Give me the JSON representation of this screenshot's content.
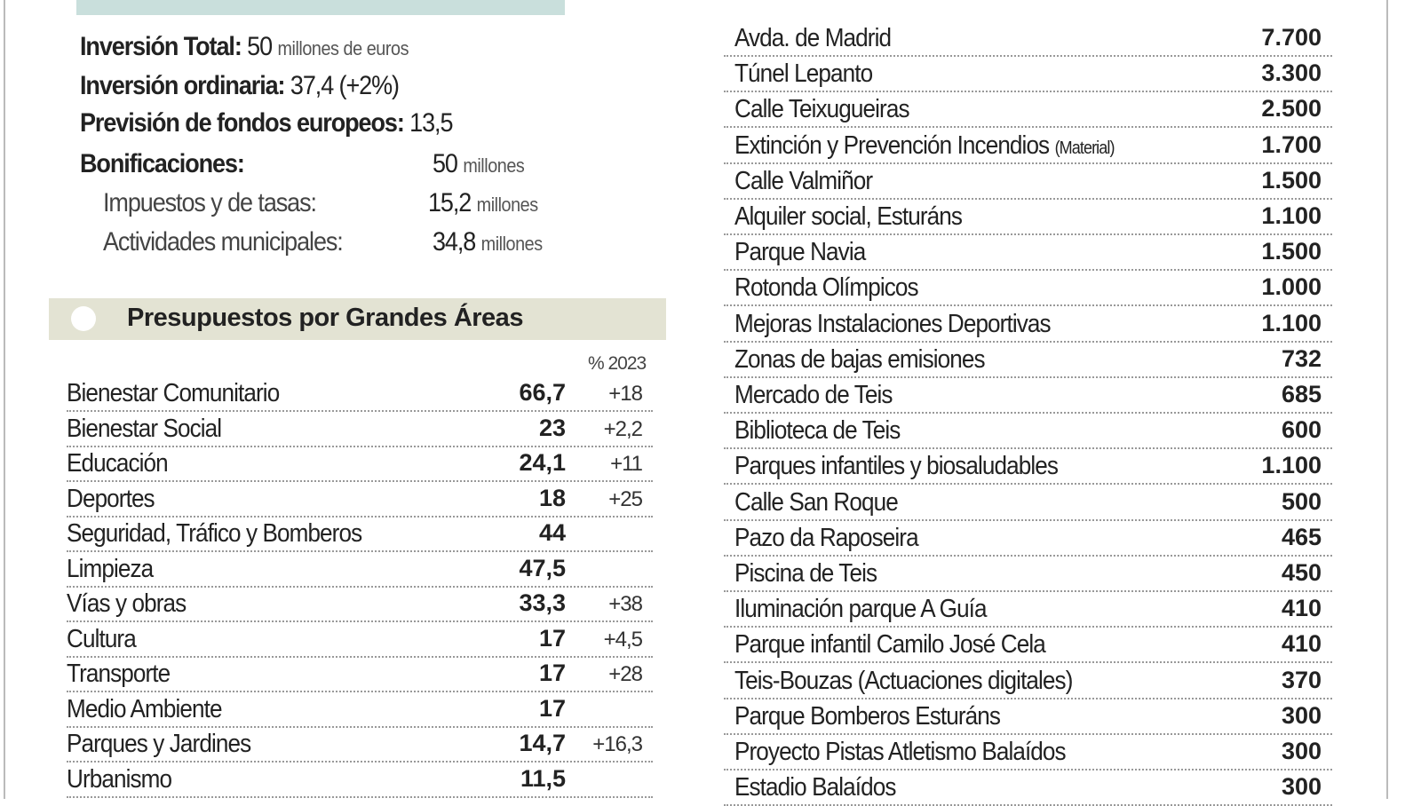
{
  "summary": {
    "total_label": "Inversión Total:",
    "total_value": "50",
    "total_unit": "millones de  euros",
    "ordinaria_label": "Inversión ordinaria:",
    "ordinaria_value": "37,4",
    "ordinaria_change": "(+2%)",
    "fondos_label": "Previsión de fondos europeos:",
    "fondos_value": "13,5",
    "bonif_label": "Bonificaciones:",
    "bonif_value": "50",
    "bonif_unit": "millones",
    "impuestos_label": "Impuestos y de tasas:",
    "impuestos_value": "15,2",
    "impuestos_unit": "millones",
    "actividades_label": "Actividades municipales:",
    "actividades_value": "34,8",
    "actividades_unit": "millones"
  },
  "areas": {
    "title": "Presupuestos por Grandes Áreas",
    "pct_header": "% 2023",
    "rows": [
      {
        "name": "Bienestar Comunitario",
        "value": "66,7",
        "pct": "+18"
      },
      {
        "name": "Bienestar Social",
        "value": "23",
        "pct": "+2,2"
      },
      {
        "name": "Educación",
        "value": "24,1",
        "pct": "+11"
      },
      {
        "name": "Deportes",
        "value": "18",
        "pct": "+25"
      },
      {
        "name": "Seguridad, Tráfico y Bomberos",
        "value": "44",
        "pct": ""
      },
      {
        "name": "Limpieza",
        "value": "47,5",
        "pct": ""
      },
      {
        "name": "Vías y obras",
        "value": "33,3",
        "pct": "+38"
      },
      {
        "name": "Cultura",
        "value": "17",
        "pct": "+4,5"
      },
      {
        "name": "Transporte",
        "value": "17",
        "pct": "+28"
      },
      {
        "name": "Medio Ambiente",
        "value": "17",
        "pct": ""
      },
      {
        "name": "Parques y Jardines",
        "value": "14,7",
        "pct": "+16,3"
      },
      {
        "name": "Urbanismo",
        "value": "11,5",
        "pct": ""
      }
    ]
  },
  "projects": [
    {
      "name": "Avda. de Madrid",
      "note": "",
      "value": "7.700"
    },
    {
      "name": "Túnel Lepanto",
      "note": "",
      "value": "3.300"
    },
    {
      "name": "Calle Teixugueiras",
      "note": "",
      "value": "2.500"
    },
    {
      "name": "Extinción y Prevención Incendios",
      "note": "(Material)",
      "value": "1.700"
    },
    {
      "name": "Calle Valmiñor",
      "note": "",
      "value": "1.500"
    },
    {
      "name": "Alquiler social, Esturáns",
      "note": "",
      "value": "1.100"
    },
    {
      "name": "Parque Navia",
      "note": "",
      "value": "1.500"
    },
    {
      "name": "Rotonda Olímpicos",
      "note": "",
      "value": "1.000"
    },
    {
      "name": "Mejoras Instalaciones Deportivas",
      "note": "",
      "value": "1.100"
    },
    {
      "name": "Zonas de bajas emisiones",
      "note": "",
      "value": "732"
    },
    {
      "name": "Mercado de Teis",
      "note": "",
      "value": "685"
    },
    {
      "name": "Biblioteca de Teis",
      "note": "",
      "value": "600"
    },
    {
      "name": "Parques infantiles y biosaludables",
      "note": "",
      "value": "1.100"
    },
    {
      "name": "Calle San Roque",
      "note": "",
      "value": "500"
    },
    {
      "name": "Pazo da Raposeira",
      "note": "",
      "value": "465"
    },
    {
      "name": "Piscina de Teis",
      "note": "",
      "value": "450"
    },
    {
      "name": "Iluminación parque A Guía",
      "note": "",
      "value": "410"
    },
    {
      "name": "Parque infantil Camilo José Cela",
      "note": "",
      "value": "410"
    },
    {
      "name": "Teis-Bouzas (Actuaciones digitales)",
      "note": "",
      "value": "370"
    },
    {
      "name": "Parque Bomberos Esturáns",
      "note": "",
      "value": "300"
    },
    {
      "name": "Proyecto Pistas Atletismo Balaídos",
      "note": "",
      "value": "300"
    },
    {
      "name": "Estadio Balaídos",
      "note": "",
      "value": "300"
    }
  ]
}
